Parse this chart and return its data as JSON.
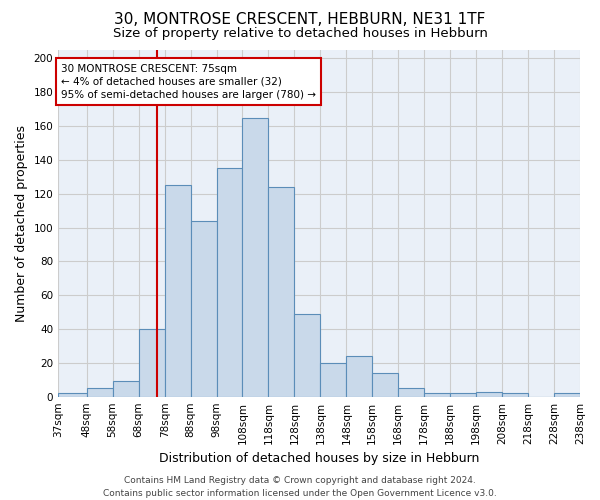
{
  "title": "30, MONTROSE CRESCENT, HEBBURN, NE31 1TF",
  "subtitle": "Size of property relative to detached houses in Hebburn",
  "xlabel": "Distribution of detached houses by size in Hebburn",
  "ylabel": "Number of detached properties",
  "bin_edges": [
    37,
    48,
    58,
    68,
    78,
    88,
    98,
    108,
    118,
    128,
    138,
    148,
    158,
    168,
    178,
    188,
    198,
    208,
    218,
    228,
    238
  ],
  "bar_heights": [
    2,
    5,
    9,
    40,
    125,
    104,
    135,
    165,
    124,
    49,
    20,
    24,
    14,
    5,
    2,
    2,
    3,
    2,
    0,
    2
  ],
  "tick_labels": [
    "37sqm",
    "48sqm",
    "58sqm",
    "68sqm",
    "78sqm",
    "88sqm",
    "98sqm",
    "108sqm",
    "118sqm",
    "128sqm",
    "138sqm",
    "148sqm",
    "158sqm",
    "168sqm",
    "178sqm",
    "188sqm",
    "198sqm",
    "208sqm",
    "218sqm",
    "228sqm",
    "238sqm"
  ],
  "bar_color": "#c9d9ea",
  "bar_edge_color": "#5b8db8",
  "red_line_x": 75,
  "annotation_line1": "30 MONTROSE CRESCENT: 75sqm",
  "annotation_line2": "← 4% of detached houses are smaller (32)",
  "annotation_line3": "95% of semi-detached houses are larger (780) →",
  "annotation_box_color": "#ffffff",
  "annotation_box_edge": "#cc0000",
  "vline_color": "#cc0000",
  "ylim": [
    0,
    205
  ],
  "yticks": [
    0,
    20,
    40,
    60,
    80,
    100,
    120,
    140,
    160,
    180,
    200
  ],
  "grid_color": "#cccccc",
  "bg_color": "#eaf0f8",
  "footer_line1": "Contains HM Land Registry data © Crown copyright and database right 2024.",
  "footer_line2": "Contains public sector information licensed under the Open Government Licence v3.0.",
  "title_fontsize": 11,
  "subtitle_fontsize": 9.5,
  "xlabel_fontsize": 9,
  "ylabel_fontsize": 9,
  "tick_fontsize": 7.5,
  "annot_fontsize": 7.5,
  "footer_fontsize": 6.5
}
